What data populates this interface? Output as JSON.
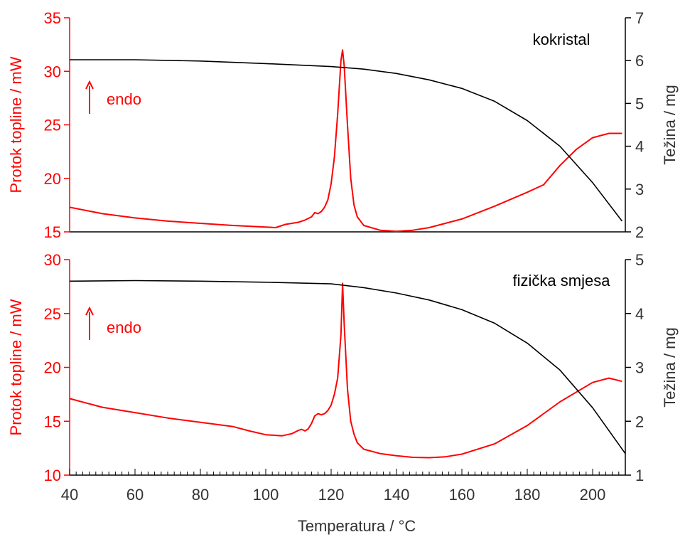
{
  "chart_data": {
    "type": "line",
    "xlabel": "Temperatura / °C",
    "xlim": [
      40,
      210
    ],
    "x_ticks": [
      40,
      60,
      80,
      100,
      120,
      140,
      160,
      180,
      200
    ],
    "left_color": "#ff0000",
    "right_color": "#000000",
    "panels": [
      {
        "label": "kokristal",
        "endo": "endo",
        "ylabel_left": "Protok topline / mW",
        "ylabel_right": "Težina / mg",
        "ylim_left": [
          15,
          35
        ],
        "ylim_right": [
          2,
          7
        ],
        "yticks_left": [
          15,
          20,
          25,
          30,
          35
        ],
        "yticks_right": [
          2,
          3,
          4,
          5,
          6,
          7
        ],
        "series": [
          {
            "axis": "left",
            "x": [
              40,
              50,
              60,
              70,
              80,
              90,
              100,
              103,
              106,
              110,
              112,
              114,
              115,
              116,
              117,
              118,
              119,
              120,
              121,
              122,
              123,
              123.5,
              124,
              125,
              126,
              127,
              128,
              130,
              135,
              140,
              145,
              150,
              160,
              170,
              180,
              185,
              190,
              195,
              200,
              205,
              209
            ],
            "y": [
              17.3,
              16.7,
              16.3,
              16.0,
              15.8,
              15.6,
              15.45,
              15.4,
              15.7,
              15.9,
              16.1,
              16.4,
              16.8,
              16.7,
              16.9,
              17.3,
              18.0,
              19.5,
              22.0,
              26.0,
              31.0,
              32.0,
              30.5,
              25.0,
              20.0,
              17.5,
              16.4,
              15.6,
              15.15,
              15.05,
              15.15,
              15.4,
              16.2,
              17.4,
              18.7,
              19.4,
              21.2,
              22.7,
              23.8,
              24.2,
              24.2
            ]
          },
          {
            "axis": "right",
            "x": [
              40,
              60,
              80,
              100,
              120,
              130,
              140,
              150,
              160,
              170,
              180,
              190,
              200,
              209
            ],
            "y": [
              6.02,
              6.02,
              5.99,
              5.93,
              5.86,
              5.8,
              5.7,
              5.55,
              5.35,
              5.05,
              4.6,
              4.0,
              3.15,
              2.25
            ]
          }
        ]
      },
      {
        "label": "fizička smjesa",
        "endo": "endo",
        "ylabel_left": "Protok topline / mW",
        "ylabel_right": "Težina / mg",
        "ylim_left": [
          10,
          30
        ],
        "ylim_right": [
          1,
          5
        ],
        "yticks_left": [
          10,
          15,
          20,
          25,
          30
        ],
        "yticks_right": [
          1,
          2,
          3,
          4,
          5
        ],
        "series": [
          {
            "axis": "left",
            "x": [
              40,
              50,
              60,
              70,
              80,
              90,
              95,
              100,
              105,
              108,
              110,
              111,
              112,
              113,
              114,
              115,
              116,
              117,
              118,
              119,
              120,
              121,
              122,
              123,
              123.5,
              124,
              125,
              126,
              127,
              128,
              130,
              135,
              140,
              145,
              150,
              155,
              160,
              170,
              180,
              190,
              200,
              205,
              209
            ],
            "y": [
              17.1,
              16.3,
              15.8,
              15.3,
              14.9,
              14.5,
              14.1,
              13.75,
              13.65,
              13.85,
              14.15,
              14.25,
              14.1,
              14.3,
              14.8,
              15.5,
              15.7,
              15.6,
              15.7,
              16.0,
              16.5,
              17.5,
              19.0,
              23.0,
              27.8,
              24.0,
              18.0,
              15.0,
              13.8,
              13.0,
              12.4,
              12.0,
              11.8,
              11.65,
              11.62,
              11.7,
              11.95,
              12.9,
              14.6,
              16.8,
              18.6,
              19.0,
              18.7
            ]
          },
          {
            "axis": "right",
            "x": [
              40,
              60,
              80,
              100,
              120,
              130,
              140,
              150,
              160,
              170,
              180,
              190,
              200,
              210
            ],
            "y": [
              4.6,
              4.61,
              4.6,
              4.58,
              4.55,
              4.48,
              4.38,
              4.25,
              4.07,
              3.82,
              3.45,
              2.95,
              2.25,
              1.4
            ]
          }
        ]
      }
    ]
  }
}
